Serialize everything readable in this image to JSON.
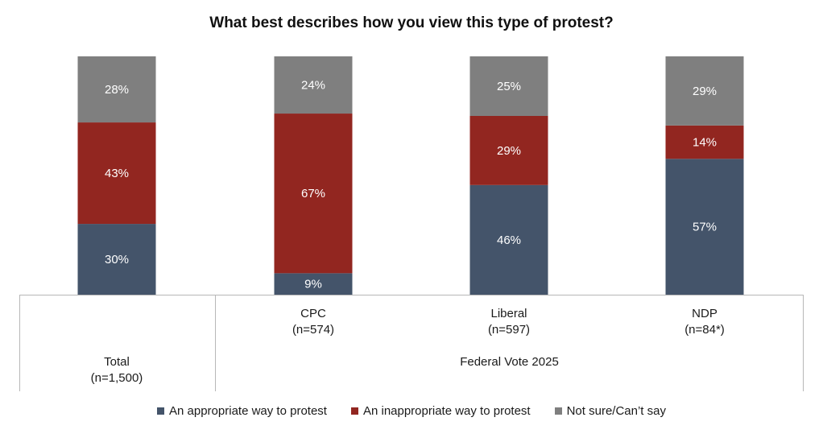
{
  "chart_data": {
    "type": "bar",
    "stacked": true,
    "title": "What best describes how you view this type of protest?",
    "categories": [
      {
        "name": "Total",
        "n": "(n=1,500)"
      },
      {
        "name": "CPC",
        "n": "(n=574)"
      },
      {
        "name": "Liberal",
        "n": "(n=597)"
      },
      {
        "name": "NDP",
        "n": "(n=84*)"
      }
    ],
    "group_label": "Federal Vote 2025",
    "series": [
      {
        "name": "An appropriate way to protest",
        "color": "#44546a",
        "values": [
          30,
          9,
          46,
          57
        ],
        "labels": [
          "30%",
          "9%",
          "46%",
          "57%"
        ]
      },
      {
        "name": "An inappropriate way to protest",
        "color": "#922620",
        "values": [
          43,
          67,
          29,
          14
        ],
        "labels": [
          "43%",
          "67%",
          "29%",
          "14%"
        ]
      },
      {
        "name": "Not sure/Can’t say",
        "color": "#7f7f7f",
        "values": [
          28,
          24,
          25,
          29
        ],
        "labels": [
          "28%",
          "24%",
          "25%",
          "29%"
        ]
      }
    ],
    "ylim": [
      0,
      100
    ],
    "grid": false,
    "legend_position": "bottom"
  }
}
